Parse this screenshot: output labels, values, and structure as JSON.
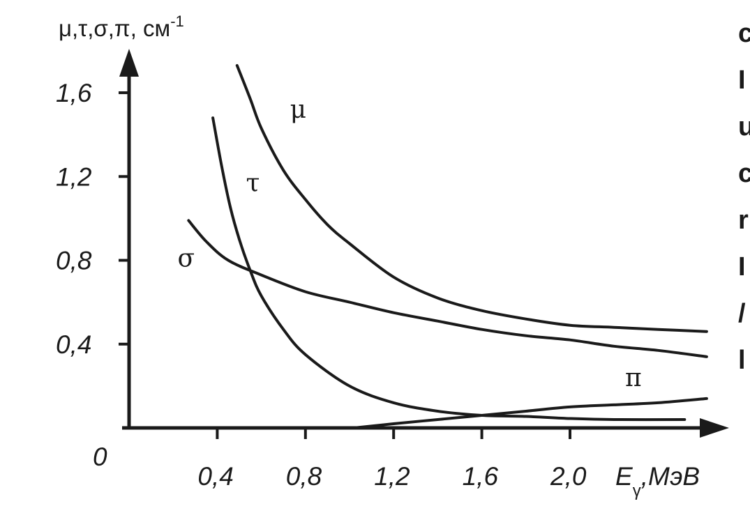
{
  "chart_data": {
    "type": "line",
    "title": "",
    "ylabel": "μ,τ,σ,π, см",
    "ylabel_exp": "-1",
    "xlabel_main": "E",
    "xlabel_sub": "γ",
    "xlabel_unit": ",МэВ",
    "origin_label": "0",
    "xlim": [
      0,
      2.65
    ],
    "ylim": [
      0,
      1.7
    ],
    "x_ticks": [
      0.4,
      0.8,
      1.2,
      1.6,
      2.0
    ],
    "x_tick_labels": [
      "0,4",
      "0,8",
      "1,2",
      "1,6",
      "2,0"
    ],
    "y_ticks": [
      0.4,
      0.8,
      1.2,
      1.6
    ],
    "y_tick_labels": [
      "0,4",
      "0,8",
      "1,2",
      "1,6"
    ],
    "grid": false,
    "series": [
      {
        "name": "μ",
        "label_at": [
          0.73,
          1.48
        ],
        "points": [
          [
            0.49,
            1.73
          ],
          [
            0.55,
            1.57
          ],
          [
            0.6,
            1.43
          ],
          [
            0.7,
            1.23
          ],
          [
            0.8,
            1.09
          ],
          [
            0.9,
            0.97
          ],
          [
            1.0,
            0.88
          ],
          [
            1.2,
            0.72
          ],
          [
            1.4,
            0.62
          ],
          [
            1.6,
            0.56
          ],
          [
            1.8,
            0.52
          ],
          [
            2.0,
            0.49
          ],
          [
            2.2,
            0.48
          ],
          [
            2.4,
            0.47
          ],
          [
            2.62,
            0.46
          ]
        ]
      },
      {
        "name": "τ",
        "label_at": [
          0.53,
          1.13
        ],
        "points": [
          [
            0.38,
            1.48
          ],
          [
            0.42,
            1.25
          ],
          [
            0.46,
            1.05
          ],
          [
            0.5,
            0.9
          ],
          [
            0.55,
            0.75
          ],
          [
            0.6,
            0.63
          ],
          [
            0.7,
            0.47
          ],
          [
            0.8,
            0.35
          ],
          [
            1.0,
            0.2
          ],
          [
            1.2,
            0.12
          ],
          [
            1.4,
            0.08
          ],
          [
            1.6,
            0.06
          ],
          [
            1.8,
            0.055
          ],
          [
            2.0,
            0.045
          ],
          [
            2.2,
            0.04
          ],
          [
            2.52,
            0.04
          ]
        ]
      },
      {
        "name": "σ",
        "label_at": [
          0.22,
          0.77
        ],
        "points": [
          [
            0.27,
            0.99
          ],
          [
            0.35,
            0.89
          ],
          [
            0.45,
            0.8
          ],
          [
            0.6,
            0.73
          ],
          [
            0.8,
            0.65
          ],
          [
            1.0,
            0.6
          ],
          [
            1.2,
            0.55
          ],
          [
            1.4,
            0.51
          ],
          [
            1.6,
            0.47
          ],
          [
            1.8,
            0.44
          ],
          [
            2.0,
            0.42
          ],
          [
            2.2,
            0.39
          ],
          [
            2.4,
            0.37
          ],
          [
            2.62,
            0.34
          ]
        ]
      },
      {
        "name": "π",
        "label_at": [
          2.25,
          0.2
        ],
        "points": [
          [
            1.02,
            0.0
          ],
          [
            1.2,
            0.02
          ],
          [
            1.4,
            0.04
          ],
          [
            1.6,
            0.06
          ],
          [
            1.8,
            0.08
          ],
          [
            2.0,
            0.1
          ],
          [
            2.2,
            0.11
          ],
          [
            2.4,
            0.12
          ],
          [
            2.62,
            0.14
          ]
        ]
      }
    ]
  },
  "edge_text": [
    "c",
    "I",
    "u",
    "c",
    "r",
    "I",
    "/",
    "l"
  ]
}
